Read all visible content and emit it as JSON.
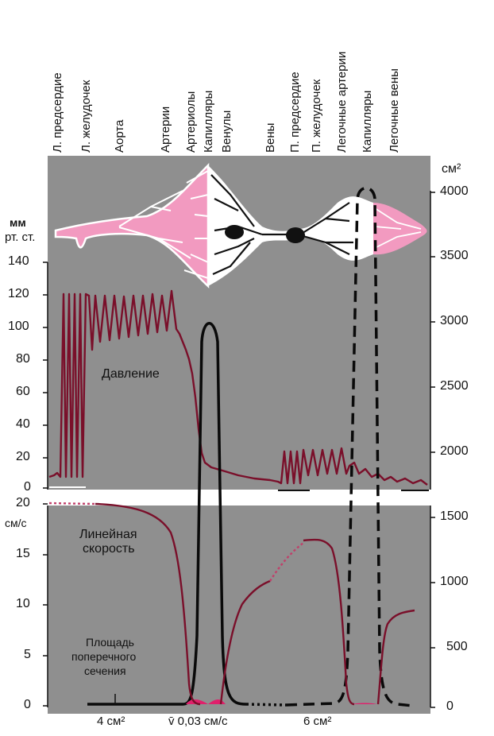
{
  "segments": [
    "Л. предсердие",
    "Л. желудочек",
    "Аорта",
    "Артерии",
    "Артериолы",
    "Капилляры",
    "Венулы",
    "Вены",
    "П. предсердие",
    "П. желудочек",
    "Легочные артерии",
    "Капилляры",
    "Легочные вены"
  ],
  "left_axis_top": {
    "unit_line1": "мм",
    "unit_line2": "рт. ст.",
    "ticks": [
      "140",
      "120",
      "100",
      "80",
      "60",
      "40",
      "20",
      "0"
    ]
  },
  "left_axis_bottom": {
    "unit": "см/с",
    "ticks": [
      "20",
      "15",
      "10",
      "5",
      "0"
    ]
  },
  "right_axis": {
    "unit": "см²",
    "ticks": [
      "4000",
      "3500",
      "3000",
      "2500",
      "2000",
      "1500",
      "1000",
      "500",
      "0"
    ]
  },
  "curve_labels": {
    "pressure": "Давление",
    "velocity_line1": "Линейная",
    "velocity_line2": "скорость",
    "area_line1": "Площадь",
    "area_line2": "поперечного",
    "area_line3": "сечения"
  },
  "bottom_annotations": {
    "left_area": "4 см²",
    "capillary_velocity": "v̄ 0,03 см/с",
    "right_area": "6 см²"
  },
  "colors": {
    "panel": "#8f8f8f",
    "curve": "#7a0f2a",
    "arterial_pink": "#f29ac0",
    "area_curve": "#0a0a0a",
    "capillary_fill": "#e0206c"
  }
}
